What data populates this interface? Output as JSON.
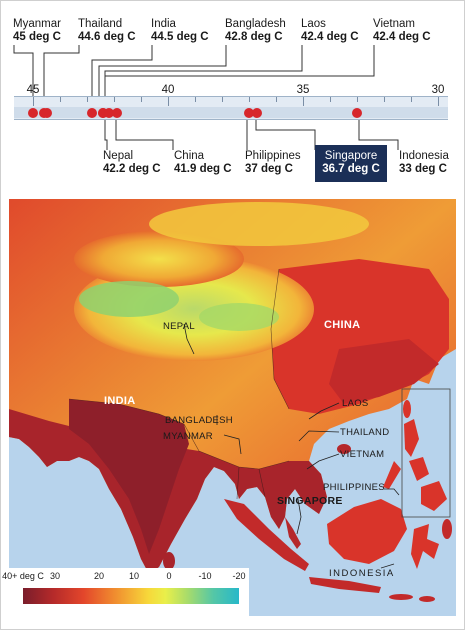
{
  "timeline": {
    "ticks": [
      {
        "value": "45",
        "temp": 45
      },
      {
        "value": "40",
        "temp": 40
      },
      {
        "value": "35",
        "temp": 35
      },
      {
        "value": "30",
        "temp": 30
      }
    ],
    "countries_top": [
      {
        "name": "Myanmar",
        "temp_label": "45 deg C",
        "temp": 45
      },
      {
        "name": "Thailand",
        "temp_label": "44.6 deg C",
        "temp": 44.6
      },
      {
        "name": "India",
        "temp_label": "44.5 deg C",
        "temp": 44.5
      },
      {
        "name": "Bangladesh",
        "temp_label": "42.8 deg C",
        "temp": 42.8
      },
      {
        "name": "Laos",
        "temp_label": "42.4 deg C",
        "temp": 42.4
      },
      {
        "name": "Vietnam",
        "temp_label": "42.4 deg C",
        "temp": 42.4
      }
    ],
    "countries_bottom": [
      {
        "name": "Nepal",
        "temp_label": "42.2 deg C",
        "temp": 42.2
      },
      {
        "name": "China",
        "temp_label": "41.9 deg C",
        "temp": 41.9
      },
      {
        "name": "Philippines",
        "temp_label": "37 deg C",
        "temp": 37
      },
      {
        "name": "Singapore",
        "temp_label": "36.7 deg C",
        "temp": 36.7,
        "highlighted": true
      },
      {
        "name": "Indonesia",
        "temp_label": "33 deg C",
        "temp": 33
      }
    ],
    "dot_color": "#d7262b",
    "highlight_color": "#1b2f57"
  },
  "map": {
    "labels": {
      "nepal": "NEPAL",
      "china": "CHINA",
      "india": "INDIA",
      "bangladesh": "BANGLADESH",
      "myanmar": "MYANMAR",
      "laos": "LAOS",
      "thailand": "THAILAND",
      "vietnam": "VIETNAM",
      "philippines": "PHILIPPINES",
      "singapore": "SINGAPORE",
      "indonesia": "INDONESIA"
    },
    "sea_color": "#b7d3ec"
  },
  "legend": {
    "ticks": [
      "40+ deg C",
      "30",
      "20",
      "10",
      "0",
      "-10",
      "-20"
    ]
  }
}
